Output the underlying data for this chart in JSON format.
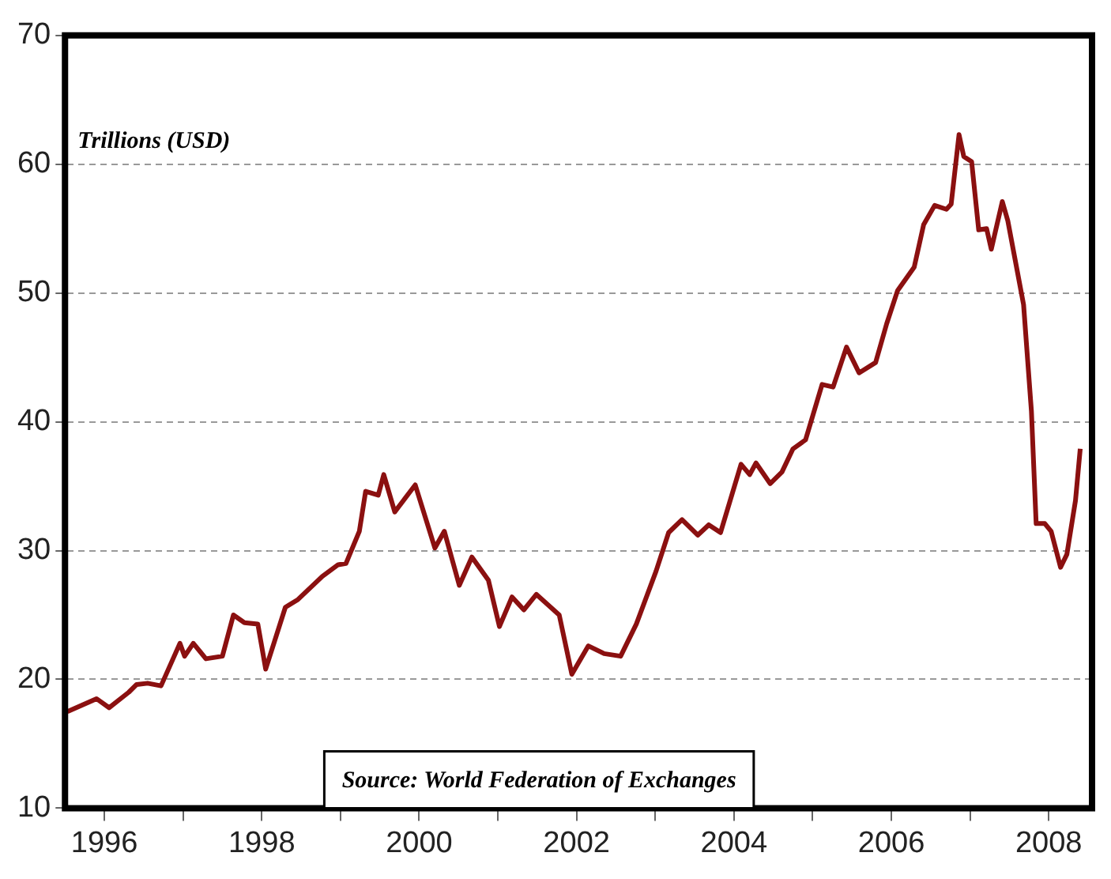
{
  "chart_data": {
    "type": "line",
    "ylabel": "Trillions (USD)",
    "annotations": [
      "Source: World Federation of Exchanges"
    ],
    "xlim": [
      1995.5,
      2008.55
    ],
    "xticks": [
      1996,
      {
        "value": 1997,
        "label": null
      },
      1998,
      {
        "value": 1999,
        "label": null
      },
      2000,
      {
        "value": 2001,
        "label": null
      },
      2002,
      {
        "value": 2003,
        "label": null
      },
      2004,
      {
        "value": 2005,
        "label": null
      },
      2006,
      {
        "value": 2007,
        "label": null
      },
      2008
    ],
    "ylim": [
      10,
      70
    ],
    "yticks": [
      10,
      20,
      30,
      40,
      50,
      60,
      70
    ],
    "grid": "y",
    "legend": false,
    "marker": "none",
    "line_style": "solid",
    "series": [
      {
        "color": "#8b1010",
        "x": [
          1995.53,
          1995.9,
          1996.06,
          1996.31,
          1996.41,
          1996.55,
          1996.72,
          1996.96,
          1997.02,
          1997.13,
          1997.29,
          1997.5,
          1997.64,
          1997.78,
          1997.95,
          1998.05,
          1998.3,
          1998.46,
          1998.77,
          1998.97,
          1999.07,
          1999.24,
          1999.32,
          1999.48,
          1999.55,
          1999.69,
          1999.95,
          2000.2,
          2000.32,
          2000.51,
          2000.67,
          2000.88,
          2001.02,
          2001.18,
          2001.33,
          2001.49,
          2001.78,
          2001.94,
          2002.15,
          2002.35,
          2002.56,
          2002.76,
          2003.01,
          2003.17,
          2003.34,
          2003.54,
          2003.68,
          2003.83,
          2004.09,
          2004.2,
          2004.28,
          2004.46,
          2004.61,
          2004.75,
          2004.91,
          2005.12,
          2005.26,
          2005.43,
          2005.59,
          2005.8,
          2005.94,
          2006.08,
          2006.29,
          2006.41,
          2006.55,
          2006.7,
          2006.76,
          2006.86,
          2006.92,
          2007.02,
          2007.11,
          2007.21,
          2007.27,
          2007.41,
          2007.48,
          2007.68,
          2007.78,
          2007.84,
          2007.95,
          2008.03,
          2008.15,
          2008.23,
          2008.34,
          2008.4
        ],
        "values": [
          17.5,
          18.5,
          17.8,
          19.0,
          19.6,
          19.7,
          19.5,
          22.8,
          21.8,
          22.8,
          21.6,
          21.8,
          25.0,
          24.4,
          24.3,
          20.8,
          25.6,
          26.2,
          28.0,
          28.9,
          29.0,
          31.5,
          34.6,
          34.3,
          35.9,
          33.0,
          35.1,
          30.2,
          31.5,
          27.3,
          29.5,
          27.7,
          24.1,
          26.4,
          25.4,
          26.6,
          25.0,
          20.4,
          22.6,
          22.0,
          21.8,
          24.3,
          28.4,
          31.4,
          32.4,
          31.2,
          32.0,
          31.4,
          36.7,
          35.9,
          36.8,
          35.2,
          36.1,
          37.9,
          38.6,
          42.9,
          42.7,
          45.8,
          43.8,
          44.6,
          47.6,
          50.2,
          52.0,
          55.3,
          56.8,
          56.5,
          56.9,
          62.3,
          60.6,
          60.2,
          54.9,
          55.0,
          53.4,
          57.1,
          55.6,
          49.1,
          40.8,
          32.1,
          32.1,
          31.5,
          28.7,
          29.7,
          33.9,
          37.9
        ]
      }
    ]
  }
}
